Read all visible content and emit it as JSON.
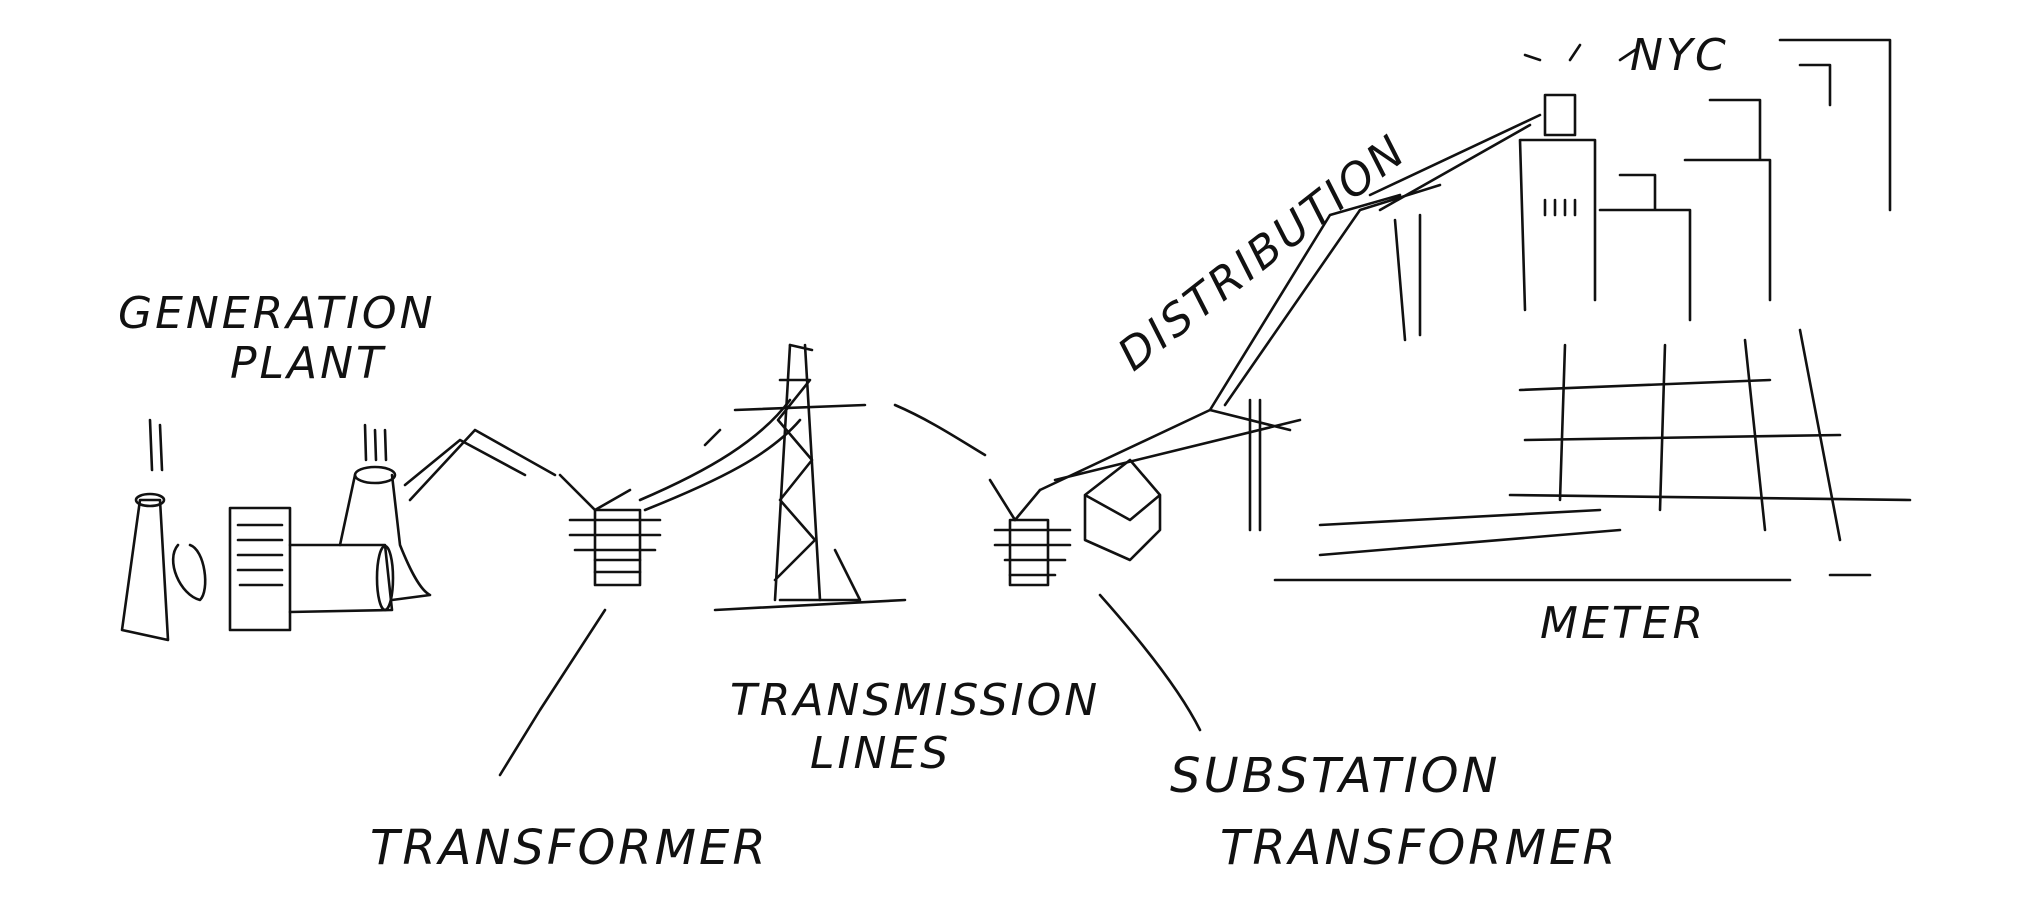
{
  "labels": {
    "generation_line1": "GENERATION",
    "generation_line2": "PLANT",
    "transformer": "TRANSFORMER",
    "transmission_line1": "TRANSMISSION",
    "transmission_line2": "LINES",
    "substation_line1": "SUBSTATION",
    "substation_line2": "TRANSFORMER",
    "distribution": "DISTRIBUTION",
    "meter": "METER",
    "city": "NYC"
  },
  "colors": {
    "ink": "#111111",
    "background": "#ffffff"
  }
}
